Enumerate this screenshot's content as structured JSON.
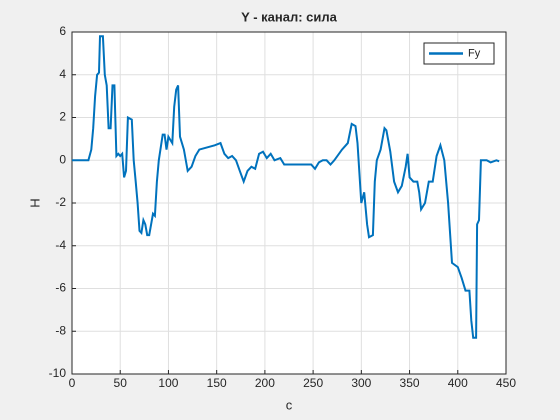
{
  "chart_data": {
    "type": "line",
    "title": "Y - канал: сила",
    "xlabel": "c",
    "ylabel": "Н",
    "x": [
      0,
      17,
      20,
      22,
      24,
      26,
      28,
      29,
      32,
      34,
      36,
      38,
      40,
      42,
      44,
      46,
      48,
      50,
      52,
      54,
      56,
      58,
      62,
      64,
      66,
      68,
      70,
      72,
      74,
      76,
      78,
      80,
      82,
      84,
      86,
      88,
      90,
      94,
      96,
      98,
      100,
      104,
      106,
      108,
      110,
      112,
      116,
      120,
      124,
      128,
      132,
      140,
      148,
      154,
      158,
      162,
      166,
      170,
      174,
      178,
      182,
      186,
      190,
      194,
      198,
      202,
      206,
      210,
      216,
      220,
      240,
      248,
      252,
      256,
      260,
      264,
      268,
      272,
      280,
      286,
      290,
      294,
      296,
      300,
      303,
      306,
      308,
      312,
      314,
      316,
      320,
      324,
      326,
      330,
      334,
      338,
      342,
      346,
      348,
      350,
      354,
      358,
      360,
      362,
      366,
      370,
      374,
      378,
      382,
      386,
      390,
      394,
      400,
      404,
      408,
      412,
      414,
      416,
      419,
      420,
      422,
      424,
      430,
      434,
      440,
      443
    ],
    "series": [
      {
        "name": "Fy",
        "color": "#0072bd",
        "values": [
          0,
          0,
          0.5,
          1.5,
          3,
          4,
          4.1,
          5.8,
          5.8,
          4,
          3.5,
          1.5,
          1.5,
          3.5,
          3.5,
          0.2,
          0.3,
          0.2,
          0.3,
          -0.8,
          -0.5,
          2,
          1.9,
          0,
          -1,
          -2,
          -3.3,
          -3.4,
          -2.8,
          -3,
          -3.5,
          -3.5,
          -3,
          -2.5,
          -2.6,
          -1,
          0,
          1.2,
          1.2,
          0.5,
          1.1,
          0.8,
          2.5,
          3.3,
          3.5,
          1.1,
          0.5,
          -0.5,
          -0.3,
          0.2,
          0.5,
          0.6,
          0.7,
          0.8,
          0.3,
          0.1,
          0.2,
          0,
          -0.5,
          -1,
          -0.5,
          -0.3,
          -0.4,
          0.3,
          0.4,
          0.1,
          0.3,
          0,
          0.1,
          -0.2,
          -0.2,
          -0.2,
          -0.4,
          -0.1,
          0,
          0,
          -0.2,
          0,
          0.5,
          0.8,
          1.7,
          1.6,
          0.8,
          -2,
          -1.5,
          -3,
          -3.6,
          -3.5,
          -1,
          0,
          0.5,
          1.5,
          1.4,
          0.4,
          -1,
          -1.5,
          -1.2,
          -0.3,
          0.3,
          -0.8,
          -1,
          -1,
          -1.5,
          -2.3,
          -2,
          -1,
          -1,
          0.2,
          0.7,
          0,
          -2,
          -4.8,
          -5,
          -5.5,
          -6.1,
          -6.1,
          -7.5,
          -8.3,
          -8.3,
          -3,
          -2.8,
          0,
          0,
          -0.1,
          0,
          -0.05
        ]
      }
    ],
    "xlim": [
      0,
      450
    ],
    "xticks": [
      0,
      50,
      100,
      150,
      200,
      250,
      300,
      350,
      400,
      450
    ],
    "ylim": [
      -10,
      6
    ],
    "yticks": [
      -10,
      -8,
      -6,
      -4,
      -2,
      0,
      2,
      4,
      6
    ],
    "grid": true,
    "legend": "upper right"
  }
}
